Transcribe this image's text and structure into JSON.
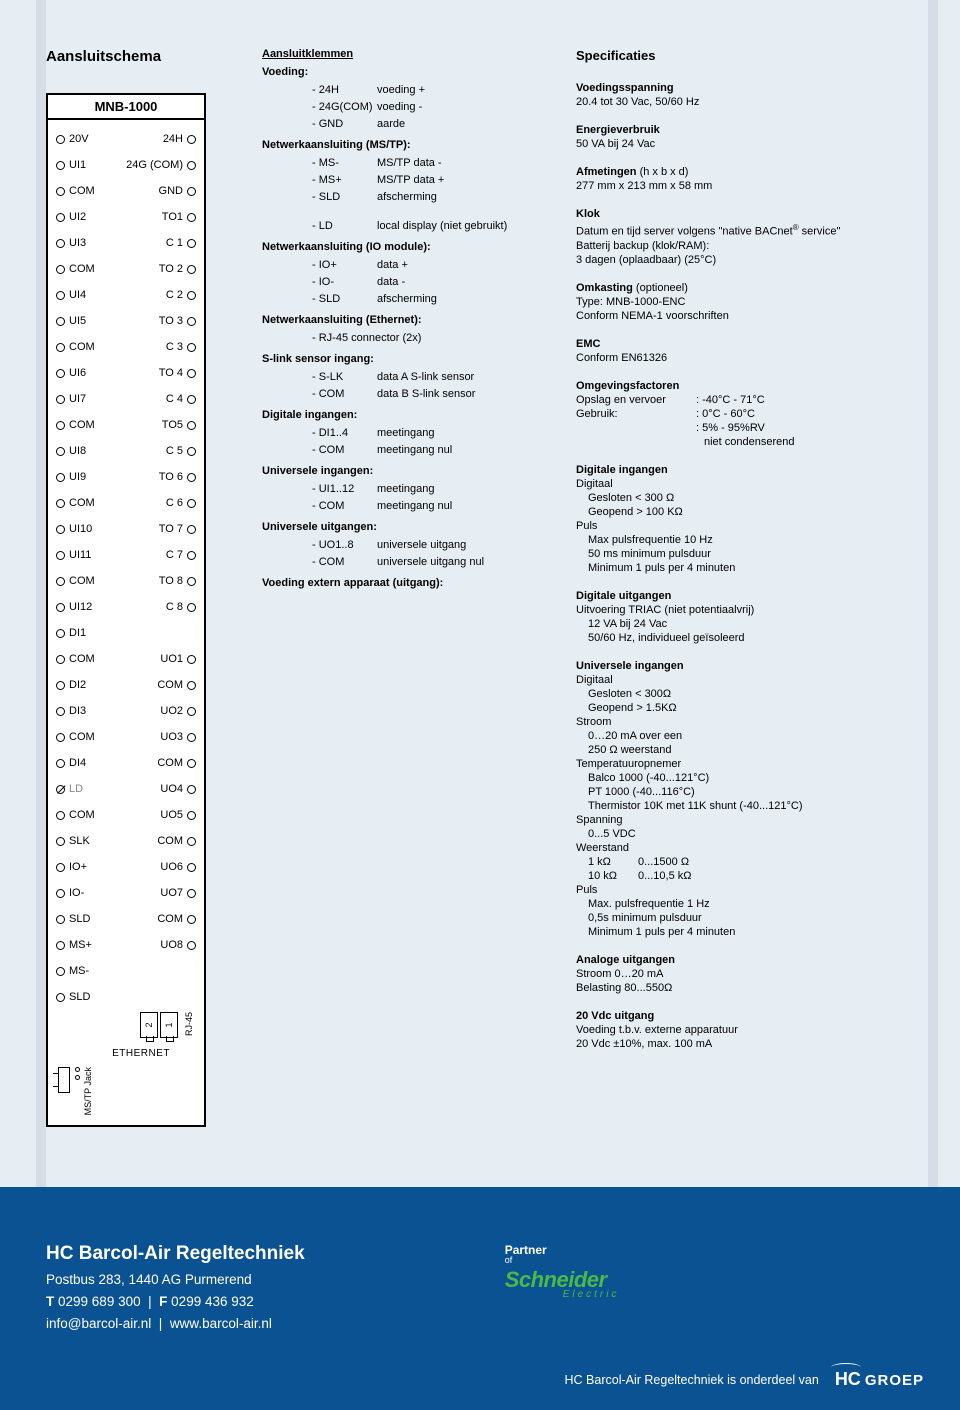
{
  "page": {
    "left_title": "Aansluitschema",
    "right_title": "Specificaties"
  },
  "device": {
    "title": "MNB-1000",
    "ethernet_label": "ETHERNET",
    "rj45_label": "RJ-45",
    "rj45_1": "1",
    "rj45_2": "2",
    "mstp_label": "MS/TP Jack",
    "rows": [
      {
        "l": "20V",
        "r": "24H"
      },
      {
        "l": "UI1",
        "r": "24G (COM)"
      },
      {
        "l": "COM",
        "r": "GND"
      },
      {
        "l": "UI2",
        "r": ""
      },
      {
        "l": "",
        "r": "TO1",
        "shift": true
      },
      {
        "l": "UI3",
        "r": ""
      },
      {
        "l": "",
        "r": "C 1",
        "shift": true
      },
      {
        "l": "COM",
        "r": ""
      },
      {
        "l": "",
        "r": "TO 2",
        "shift": true
      },
      {
        "l": "UI4",
        "r": ""
      },
      {
        "l": "",
        "r": "C 2",
        "shift": true
      },
      {
        "l": "UI5",
        "r": ""
      },
      {
        "l": "",
        "r": "TO 3",
        "shift": true
      },
      {
        "l": "COM",
        "r": ""
      },
      {
        "l": "",
        "r": "C 3",
        "shift": true
      },
      {
        "l": "UI6",
        "r": ""
      },
      {
        "l": "",
        "r": "TO 4",
        "shift": true
      },
      {
        "l": "UI7",
        "r": ""
      },
      {
        "l": "",
        "r": "C 4",
        "shift": true
      },
      {
        "l": "COM",
        "r": ""
      },
      {
        "l": "",
        "r": "TO5",
        "shift": true
      },
      {
        "l": "UI8",
        "r": ""
      },
      {
        "l": "",
        "r": "C 5",
        "shift": true
      },
      {
        "l": "UI9",
        "r": ""
      },
      {
        "l": "",
        "r": "TO 6",
        "shift": true
      },
      {
        "l": "COM",
        "r": ""
      },
      {
        "l": "",
        "r": "C 6",
        "shift": true
      },
      {
        "l": "UI10",
        "r": ""
      },
      {
        "l": "",
        "r": "TO 7",
        "shift": true
      },
      {
        "l": "UI11",
        "r": ""
      },
      {
        "l": "",
        "r": "C 7",
        "shift": true
      },
      {
        "l": "COM",
        "r": ""
      },
      {
        "l": "",
        "r": "TO 8",
        "shift": true
      },
      {
        "l": "UI12",
        "r": ""
      },
      {
        "l": "",
        "r": "C 8",
        "shift": true
      },
      {
        "l": "DI1",
        "r": ""
      },
      {
        "l": "COM",
        "r": "UO1"
      },
      {
        "l": "DI2",
        "r": "COM"
      },
      {
        "l": "DI3",
        "r": "UO2"
      },
      {
        "l": "COM",
        "r": "UO3"
      },
      {
        "l": "DI4",
        "r": "COM"
      },
      {
        "l": "LD",
        "r": "UO4",
        "ld": true
      },
      {
        "l": "COM",
        "r": "UO5"
      },
      {
        "l": "SLK",
        "r": "COM"
      },
      {
        "l": "IO+",
        "r": "UO6"
      },
      {
        "l": "IO-",
        "r": "UO7"
      },
      {
        "l": "SLD",
        "r": "COM"
      },
      {
        "l": "MS+",
        "r": "UO8"
      },
      {
        "l": "MS-",
        "r": ""
      },
      {
        "l": "SLD",
        "r": ""
      }
    ]
  },
  "terms": {
    "header": "Aansluitklemmen",
    "sections": [
      {
        "title": "Voeding:",
        "rows": [
          {
            "k": "24H",
            "v": "voeding +"
          },
          {
            "k": "24G(COM)",
            "v": "voeding -"
          },
          {
            "k": "GND",
            "v": "aarde"
          }
        ]
      },
      {
        "title": "Netwerkaansluiting (MS/TP):",
        "rows": [
          {
            "k": "MS-",
            "v": "MS/TP data -"
          },
          {
            "k": "MS+",
            "v": "MS/TP data +"
          },
          {
            "k": "SLD",
            "v": "afscherming"
          },
          {
            "k": "",
            "v": ""
          },
          {
            "k": "LD",
            "v": "local display (niet gebruikt)"
          }
        ]
      },
      {
        "title": "Netwerkaansluiting (IO module):",
        "rows": [
          {
            "k": "IO+",
            "v": "data +"
          },
          {
            "k": "IO-",
            "v": "data -"
          },
          {
            "k": "SLD",
            "v": "afscherming"
          }
        ]
      },
      {
        "title": "Netwerkaansluiting (Ethernet):",
        "rows": [
          {
            "k": "RJ-45 connector (2x)",
            "v": ""
          }
        ]
      },
      {
        "title": "S-link sensor ingang:",
        "rows": [
          {
            "k": "S-LK",
            "v": "data A S-link sensor"
          },
          {
            "k": "COM",
            "v": "data B S-link sensor"
          }
        ]
      },
      {
        "title": "Digitale ingangen:",
        "rows": [
          {
            "k": "DI1..4",
            "v": "meetingang"
          },
          {
            "k": "COM",
            "v": "meetingang nul"
          }
        ]
      },
      {
        "title": "Universele ingangen:",
        "rows": [
          {
            "k": "UI1..12",
            "v": "meetingang"
          },
          {
            "k": "COM",
            "v": "meetingang nul"
          }
        ]
      },
      {
        "title": "Universele uitgangen:",
        "rows": [
          {
            "k": "UO1..8",
            "v": "universele uitgang"
          },
          {
            "k": "COM",
            "v": "universele uitgang nul"
          }
        ]
      },
      {
        "title": "Voeding extern apparaat (uitgang):",
        "rows": []
      }
    ]
  },
  "specs": {
    "voeding": {
      "h": "Voedingsspanning",
      "l1": "20.4 tot 30 Vac, 50/60 Hz"
    },
    "energie": {
      "h": "Energieverbruik",
      "l1": "50 VA bij 24 Vac"
    },
    "afm": {
      "h": "Afmetingen",
      "note": "(h x b x d)",
      "l1": "277 mm x 213 mm x 58 mm"
    },
    "klok": {
      "h": "Klok",
      "l1": "Datum en tijd server volgens \"native BACnet",
      "sup": "®",
      "l1b": " service\"",
      "l2": "Batterij backup (klok/RAM):",
      "l3": "3 dagen (oplaadbaar) (25°C)"
    },
    "omk": {
      "h": "Omkasting",
      "note": "(optioneel)",
      "l1": "Type: MNB-1000-ENC",
      "l2": "Conform NEMA-1 voorschriften"
    },
    "emc": {
      "h": "EMC",
      "l1": "Conform EN61326"
    },
    "omg": {
      "h": "Omgevingsfactoren",
      "r1k": "Opslag en vervoer",
      "r1v": "-40°C - 71°C",
      "r2k": "Gebruik:",
      "r2v": "0°C - 60°C",
      "r3v": "5% - 95%RV",
      "r4v": "niet condenserend"
    },
    "di": {
      "h": "Digitale ingangen",
      "l1": "Digitaal",
      "l2": "Gesloten < 300 Ω",
      "l3": "Geopend > 100 KΩ",
      "l4": "Puls",
      "l5": "Max pulsfrequentie 10 Hz",
      "l6": "50 ms minimum pulsduur",
      "l7": "Minimum 1 puls per 4 minuten"
    },
    "do": {
      "h": "Digitale uitgangen",
      "l1": "Uitvoering TRIAC (niet potentiaalvrij)",
      "l2": "12 VA bij 24 Vac",
      "l3": "50/60 Hz, individueel geïsoleerd"
    },
    "ui": {
      "h": "Universele ingangen",
      "l1": "Digitaal",
      "l2": "Gesloten < 300Ω",
      "l3": "Geopend > 1.5KΩ",
      "l4": "Stroom",
      "l5": "0…20 mA over een",
      "l6": "250 Ω weerstand",
      "l7": "Temperatuuropnemer",
      "l8": "Balco 1000 (-40...121°C)",
      "l9": "PT 1000 (-40...116°C)",
      "l10": "Thermistor 10K met 11K shunt (-40...121°C)",
      "l11": "Spanning",
      "l12": "0...5 VDC",
      "l13": "Weerstand",
      "l14a": "1 kΩ",
      "l14b": "0...1500 Ω",
      "l15a": "10 kΩ",
      "l15b": "0...10,5 kΩ",
      "l16": "Puls",
      "l17": "Max. pulsfrequentie 1 Hz",
      "l18": "0,5s minimum pulsduur",
      "l19": "Minimum 1 puls per 4 minuten"
    },
    "ao": {
      "h": "Analoge uitgangen",
      "l1": "Stroom 0…20 mA",
      "l2": "Belasting 80...550Ω"
    },
    "vdc": {
      "h": "20 Vdc uitgang",
      "l1": "Voeding t.b.v. externe apparatuur",
      "l2": "20 Vdc ±10%, max. 100 mA"
    }
  },
  "footer": {
    "company": "HC Barcol-Air Regeltechniek",
    "addr": "Postbus 283, 1440 AG Purmerend",
    "tel_t": "T",
    "tel": "0299 689 300",
    "sep": "|",
    "fax_f": "F",
    "fax": "0299 436 932",
    "email": "info@barcol-air.nl",
    "web": "www.barcol-air.nl",
    "partner": "Partner",
    "of": "of",
    "schneider": "Schneider",
    "electric": "Electric",
    "bottom": "HC Barcol-Air Regeltechniek is onderdeel van",
    "hc": "HC",
    "groep": "GROEP"
  }
}
